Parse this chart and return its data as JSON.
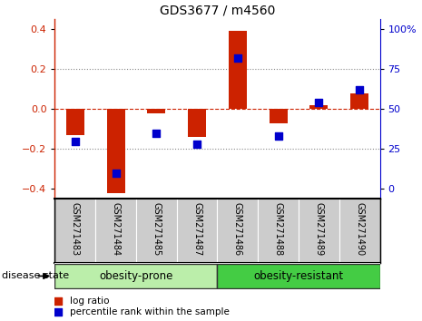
{
  "title": "GDS3677 / m4560",
  "samples": [
    "GSM271483",
    "GSM271484",
    "GSM271485",
    "GSM271487",
    "GSM271486",
    "GSM271488",
    "GSM271489",
    "GSM271490"
  ],
  "log_ratio": [
    -0.13,
    -0.42,
    -0.02,
    -0.14,
    0.39,
    -0.07,
    0.02,
    0.08
  ],
  "percentile": [
    30,
    10,
    35,
    28,
    82,
    33,
    54,
    62
  ],
  "ylim": [
    -0.45,
    0.45
  ],
  "yticks": [
    -0.4,
    -0.2,
    0.0,
    0.2,
    0.4
  ],
  "yticks_right": [
    0,
    25,
    50,
    75,
    100
  ],
  "bar_color": "#cc2200",
  "dot_color": "#0000cc",
  "zero_line_color": "#cc2200",
  "group1_label": "obesity-prone",
  "group2_label": "obesity-resistant",
  "group1_indices": [
    0,
    1,
    2,
    3
  ],
  "group2_indices": [
    4,
    5,
    6,
    7
  ],
  "group1_color": "#bbeeaa",
  "group2_color": "#44cc44",
  "label_disease_state": "disease state",
  "legend_logratio": "log ratio",
  "legend_percentile": "percentile rank within the sample",
  "background_color": "#ffffff",
  "plot_bg_color": "#ffffff",
  "grid_color": "#888888",
  "bar_width": 0.45,
  "dot_size": 40
}
